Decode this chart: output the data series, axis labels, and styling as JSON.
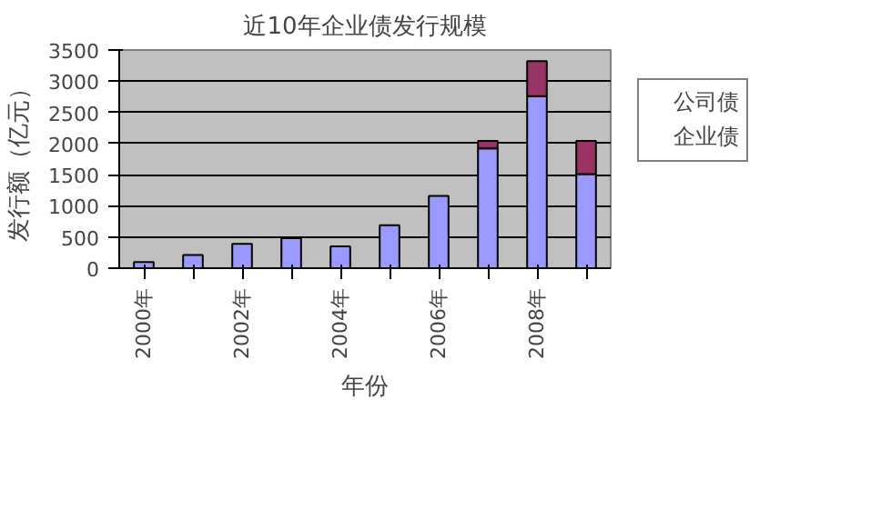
{
  "chart_data": {
    "type": "bar",
    "title": "近10年企业债发行规模",
    "xlabel": "年份",
    "ylabel": "发行额（亿元）",
    "categories": [
      "2000年",
      null,
      "2002年",
      null,
      "2004年",
      null,
      "2006年",
      null,
      "2008年",
      null
    ],
    "stacked": true,
    "series": [
      {
        "name": "企业债",
        "color": "#9999ff",
        "values": [
          100,
          210,
          390,
          480,
          350,
          690,
          1160,
          1920,
          2760,
          1510
        ]
      },
      {
        "name": "公司债",
        "color": "#993366",
        "values": [
          null,
          null,
          null,
          null,
          null,
          null,
          null,
          120,
          560,
          530
        ]
      }
    ],
    "ylim": [
      0,
      3500
    ],
    "yticks": [
      0,
      500,
      1000,
      1500,
      2000,
      2500,
      3000,
      3500
    ],
    "grid": "y",
    "legend": "right"
  }
}
